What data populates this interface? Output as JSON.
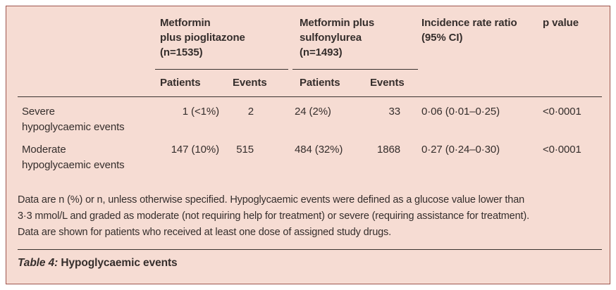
{
  "table": {
    "header": {
      "group1": {
        "title": "Metformin\nplus pioglitazone\n(n=1535)",
        "sub": [
          "Patients",
          "Events"
        ]
      },
      "group2": {
        "title": "Metformin plus\nsulfonylurea\n(n=1493)",
        "sub": [
          "Patients",
          "Events"
        ]
      },
      "irr": "Incidence rate ratio\n(95% CI)",
      "p": "p value"
    },
    "rows": [
      {
        "label": "Severe\nhypoglycaemic events",
        "g1_patients": "1 (<1%)",
        "g1_events": "2",
        "g2_patients": "24 (2%)",
        "g2_events": "33",
        "irr": "0·06 (0·01–0·25)",
        "p": "<0·0001"
      },
      {
        "label": "Moderate\nhypoglycaemic events",
        "g1_patients": "147 (10%)",
        "g1_events": "515",
        "g2_patients": "484 (32%)",
        "g2_events": "1868",
        "irr": "0·27 (0·24–0·30)",
        "p": "<0·0001"
      }
    ],
    "footnote": "Data are n (%) or n, unless otherwise specified. Hypoglycaemic events were defined as a glucose value lower than\n3·3 mmol/L and graded as moderate (not requiring help for treatment) or severe (requiring assistance for treatment).\nData are shown for patients who received at least one dose of assigned study drugs.",
    "caption_label": "Table 4:",
    "caption_text": "Hypoglycaemic events"
  },
  "colors": {
    "background": "#f6dcd3",
    "border": "#9e544d",
    "rule": "#3a322f",
    "text": "#352e2c"
  }
}
